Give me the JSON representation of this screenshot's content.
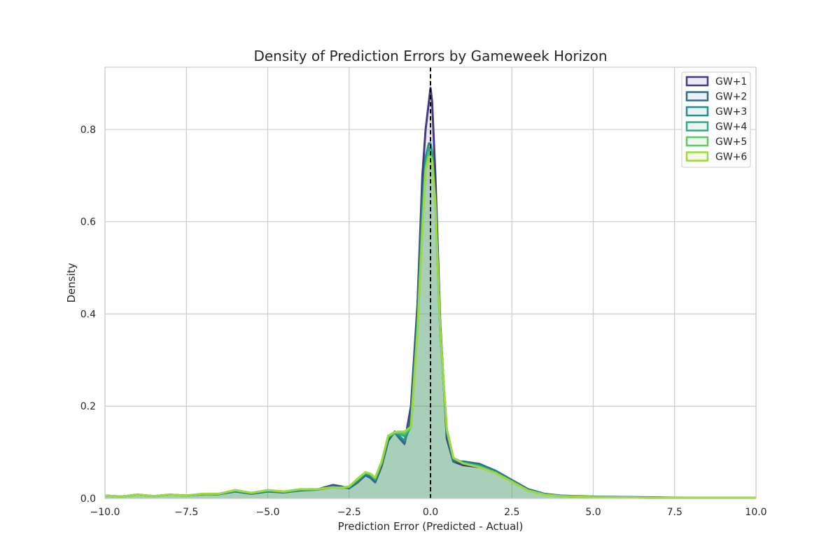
{
  "chart_data": {
    "type": "area",
    "title": "Density of Prediction Errors by Gameweek Horizon",
    "xlabel": "Prediction Error (Predicted - Actual)",
    "ylabel": "Density",
    "xlim": [
      -10,
      10
    ],
    "ylim": [
      0,
      0.935
    ],
    "xticks": [
      -10,
      -7.5,
      -5,
      -2.5,
      0,
      2.5,
      5,
      7.5,
      10
    ],
    "xtick_labels": [
      "−10.0",
      "−7.5",
      "−5.0",
      "−2.5",
      "0.0",
      "2.5",
      "5.0",
      "7.5",
      "10.0"
    ],
    "yticks": [
      0,
      0.2,
      0.4,
      0.6,
      0.8
    ],
    "ytick_labels": [
      "0.0",
      "0.2",
      "0.4",
      "0.6",
      "0.8"
    ],
    "grid": true,
    "legend_position": "top-right",
    "reference_line": {
      "x": 0,
      "style": "dashed",
      "color": "#000000"
    },
    "x": [
      -10,
      -9.5,
      -9,
      -8.5,
      -8,
      -7.5,
      -7,
      -6.5,
      -6,
      -5.5,
      -5,
      -4.5,
      -4,
      -3.5,
      -3,
      -2.75,
      -2.5,
      -2.25,
      -2,
      -1.85,
      -1.7,
      -1.5,
      -1.3,
      -1.1,
      -0.95,
      -0.8,
      -0.6,
      -0.4,
      -0.25,
      -0.15,
      -0.05,
      0,
      0.05,
      0.15,
      0.3,
      0.5,
      0.7,
      1,
      1.5,
      2,
      2.5,
      3,
      3.5,
      4,
      5,
      6,
      7,
      8,
      9,
      10
    ],
    "series": [
      {
        "name": "GW+1",
        "color": "#443983",
        "values": [
          0.006,
          0.004,
          0.008,
          0.005,
          0.008,
          0.006,
          0.009,
          0.01,
          0.016,
          0.011,
          0.016,
          0.013,
          0.018,
          0.019,
          0.029,
          0.026,
          0.022,
          0.035,
          0.05,
          0.045,
          0.035,
          0.07,
          0.125,
          0.145,
          0.135,
          0.12,
          0.2,
          0.42,
          0.7,
          0.8,
          0.86,
          0.89,
          0.86,
          0.7,
          0.38,
          0.13,
          0.08,
          0.072,
          0.068,
          0.058,
          0.038,
          0.018,
          0.009,
          0.005,
          0.003,
          0.002,
          0.001,
          0.001,
          0.001,
          0.001
        ]
      },
      {
        "name": "GW+2",
        "color": "#31688e",
        "values": [
          0.006,
          0.004,
          0.008,
          0.005,
          0.008,
          0.006,
          0.009,
          0.009,
          0.015,
          0.01,
          0.015,
          0.013,
          0.017,
          0.019,
          0.027,
          0.025,
          0.022,
          0.034,
          0.05,
          0.045,
          0.035,
          0.072,
          0.128,
          0.143,
          0.13,
          0.118,
          0.18,
          0.4,
          0.65,
          0.735,
          0.74,
          0.74,
          0.73,
          0.65,
          0.37,
          0.14,
          0.08,
          0.08,
          0.075,
          0.06,
          0.04,
          0.02,
          0.01,
          0.006,
          0.004,
          0.003,
          0.002,
          0.001,
          0.001,
          0.001
        ]
      },
      {
        "name": "GW+3",
        "color": "#21908d",
        "values": [
          0.006,
          0.004,
          0.008,
          0.005,
          0.008,
          0.006,
          0.009,
          0.01,
          0.016,
          0.011,
          0.016,
          0.014,
          0.018,
          0.019,
          0.024,
          0.023,
          0.024,
          0.038,
          0.054,
          0.05,
          0.04,
          0.076,
          0.132,
          0.142,
          0.135,
          0.125,
          0.16,
          0.38,
          0.62,
          0.74,
          0.77,
          0.77,
          0.75,
          0.64,
          0.36,
          0.145,
          0.085,
          0.078,
          0.072,
          0.058,
          0.038,
          0.018,
          0.009,
          0.005,
          0.003,
          0.002,
          0.001,
          0.001,
          0.001,
          0.001
        ]
      },
      {
        "name": "GW+4",
        "color": "#27ad81",
        "values": [
          0.006,
          0.004,
          0.008,
          0.005,
          0.008,
          0.006,
          0.009,
          0.01,
          0.017,
          0.012,
          0.017,
          0.014,
          0.019,
          0.02,
          0.024,
          0.023,
          0.025,
          0.04,
          0.055,
          0.052,
          0.042,
          0.078,
          0.133,
          0.142,
          0.14,
          0.135,
          0.155,
          0.37,
          0.6,
          0.72,
          0.76,
          0.755,
          0.74,
          0.64,
          0.36,
          0.15,
          0.088,
          0.077,
          0.07,
          0.056,
          0.037,
          0.017,
          0.009,
          0.005,
          0.003,
          0.002,
          0.001,
          0.001,
          0.001,
          0.001
        ]
      },
      {
        "name": "GW+5",
        "color": "#5cc863",
        "values": [
          0.006,
          0.004,
          0.008,
          0.005,
          0.008,
          0.006,
          0.01,
          0.01,
          0.018,
          0.012,
          0.018,
          0.015,
          0.02,
          0.02,
          0.024,
          0.023,
          0.026,
          0.041,
          0.056,
          0.053,
          0.044,
          0.08,
          0.135,
          0.143,
          0.142,
          0.14,
          0.155,
          0.365,
          0.59,
          0.715,
          0.75,
          0.745,
          0.735,
          0.64,
          0.362,
          0.15,
          0.088,
          0.076,
          0.068,
          0.055,
          0.036,
          0.017,
          0.008,
          0.005,
          0.003,
          0.002,
          0.001,
          0.001,
          0.001,
          0.001
        ]
      },
      {
        "name": "GW+6",
        "color": "#9bd93c",
        "values": [
          0.006,
          0.004,
          0.008,
          0.005,
          0.008,
          0.006,
          0.01,
          0.01,
          0.018,
          0.012,
          0.018,
          0.015,
          0.02,
          0.02,
          0.024,
          0.023,
          0.026,
          0.042,
          0.057,
          0.054,
          0.045,
          0.08,
          0.136,
          0.144,
          0.145,
          0.145,
          0.155,
          0.36,
          0.58,
          0.71,
          0.74,
          0.74,
          0.73,
          0.64,
          0.365,
          0.15,
          0.088,
          0.076,
          0.068,
          0.055,
          0.036,
          0.017,
          0.008,
          0.005,
          0.003,
          0.002,
          0.001,
          0.001,
          0.001,
          0.001
        ]
      }
    ]
  }
}
